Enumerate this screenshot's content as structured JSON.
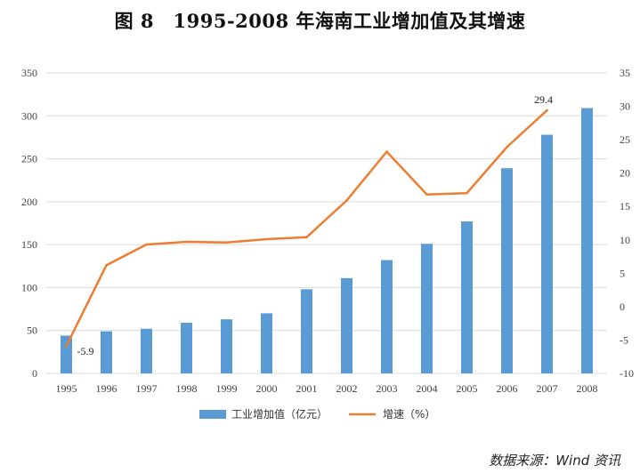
{
  "page_title": "图 8　1995-2008 年海南工业增加值及其增速",
  "source_note": "数据来源：Wind 资讯",
  "chart_data": {
    "type": "bar",
    "title": "图 8　1995-2008 年海南工业增加值及其增速",
    "categories": [
      "1995",
      "1996",
      "1997",
      "1998",
      "1999",
      "2000",
      "2001",
      "2002",
      "2003",
      "2004",
      "2005",
      "2006",
      "2007",
      "2008"
    ],
    "series": [
      {
        "name": "工业增加值（亿元）",
        "type": "bar",
        "axis": "left",
        "color": "#5B9BD5",
        "values": [
          44,
          49,
          52,
          59,
          63,
          70,
          98,
          111,
          132,
          151,
          177,
          239,
          278,
          309
        ]
      },
      {
        "name": "增速（%）",
        "type": "line",
        "axis": "right",
        "color": "#ED7D31",
        "values": [
          -5.9,
          6.2,
          9.3,
          9.7,
          9.6,
          10.1,
          10.4,
          15.9,
          23.2,
          16.8,
          17.0,
          23.9,
          29.4,
          null
        ]
      }
    ],
    "y_left": {
      "min": 0,
      "max": 350,
      "step": 50,
      "ticks": [
        "0",
        "50",
        "100",
        "150",
        "200",
        "250",
        "300",
        "350"
      ]
    },
    "y_right": {
      "min": -10,
      "max": 35,
      "step": 5,
      "ticks": [
        "-10",
        "-5",
        "0",
        "5",
        "10",
        "15",
        "20",
        "25",
        "30",
        "35"
      ]
    },
    "annotations": [
      {
        "series": 1,
        "index": 0,
        "label": "-5.9"
      },
      {
        "series": 1,
        "index": 12,
        "label": "29.4"
      }
    ],
    "legend": "bottom",
    "grid": true,
    "gridline_color": "#D9D9D9"
  }
}
